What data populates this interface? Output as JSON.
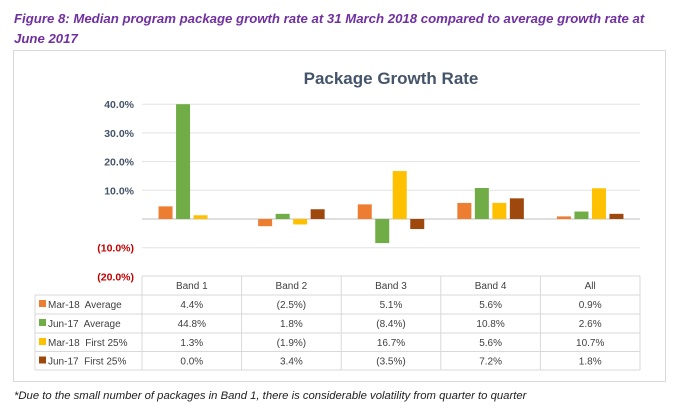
{
  "caption": "Figure 8:  Median program package growth rate at 31 March 2018 compared to average growth rate at June 2017",
  "footnote": "*Due to the small number of packages in Band 1, there is considerable volatility from quarter to quarter",
  "chart_data": {
    "type": "bar",
    "title": "Package Growth Rate",
    "categories": [
      "Band 1",
      "Band 2",
      "Band 3",
      "Band 4",
      "All"
    ],
    "ylim": [
      -20,
      40
    ],
    "yticks": [
      40,
      30,
      20,
      10,
      0,
      -10,
      -20
    ],
    "ytick_labels": [
      "40.0%",
      "30.0%",
      "20.0%",
      "10.0%",
      "",
      "(10.0%)",
      "(20.0%)"
    ],
    "grid": true,
    "legend": "data-table-left",
    "series": [
      {
        "name": "Mar-18  Average",
        "color": "#ED7D31",
        "values": [
          4.4,
          -2.5,
          5.1,
          5.6,
          0.9
        ],
        "labels": [
          "4.4%",
          "(2.5%)",
          "5.1%",
          "5.6%",
          "0.9%"
        ]
      },
      {
        "name": "Jun-17  Average",
        "color": "#70AD47",
        "values": [
          44.8,
          1.8,
          -8.4,
          10.8,
          2.6
        ],
        "labels": [
          "44.8%",
          "1.8%",
          "(8.4%)",
          "10.8%",
          "2.6%"
        ]
      },
      {
        "name": "Mar-18  First 25%",
        "color": "#FFC000",
        "values": [
          1.3,
          -1.9,
          16.7,
          5.6,
          10.7
        ],
        "labels": [
          "1.3%",
          "(1.9%)",
          "16.7%",
          "5.6%",
          "10.7%"
        ]
      },
      {
        "name": "Jun-17  First 25%",
        "color": "#9E480E",
        "values": [
          0.0,
          3.4,
          -3.5,
          7.2,
          1.8
        ],
        "labels": [
          "0.0%",
          "3.4%",
          "(3.5%)",
          "7.2%",
          "1.8%"
        ]
      }
    ],
    "colors": {
      "positive_tick": "#44546A",
      "negative_tick": "#C00000",
      "title": "#44546A"
    }
  }
}
